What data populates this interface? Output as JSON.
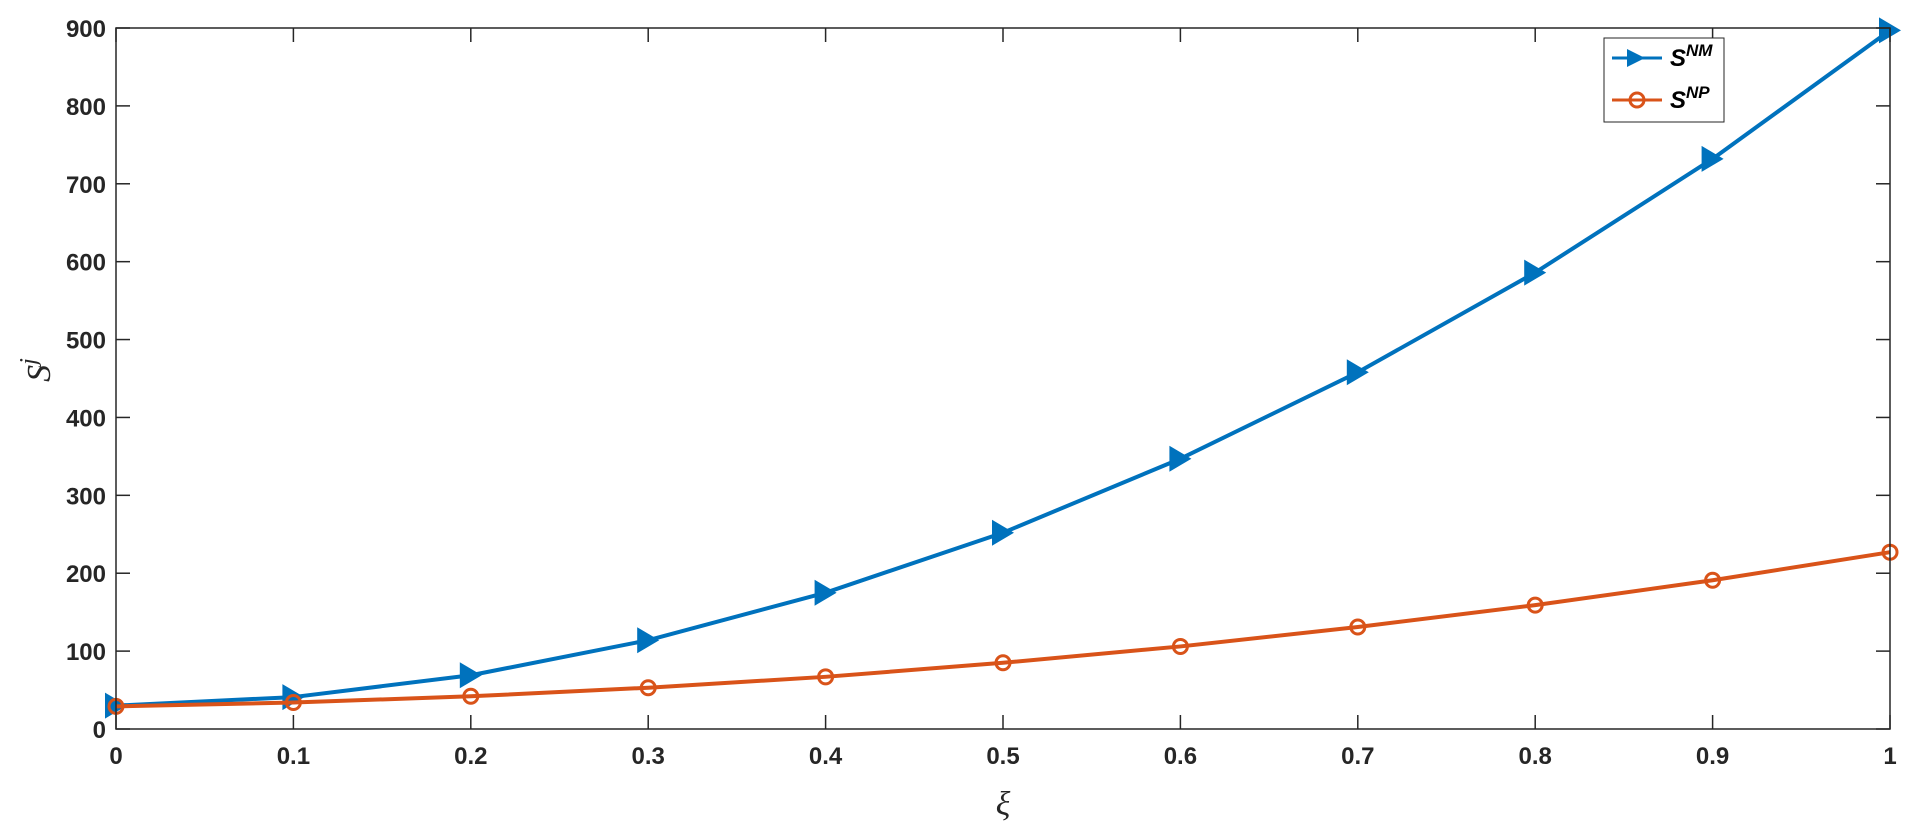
{
  "chart_data": {
    "type": "line",
    "title": "",
    "xlabel": "ξ",
    "ylabel": {
      "base": "S",
      "sup": "j"
    },
    "x": [
      0,
      0.1,
      0.2,
      0.3,
      0.4,
      0.5,
      0.6,
      0.7,
      0.8,
      0.9,
      1
    ],
    "xlim": [
      0,
      1
    ],
    "ylim": [
      0,
      900
    ],
    "xticks": [
      "0",
      "0.1",
      "0.2",
      "0.3",
      "0.4",
      "0.5",
      "0.6",
      "0.7",
      "0.8",
      "0.9",
      "1"
    ],
    "yticks": [
      "0",
      "100",
      "200",
      "300",
      "400",
      "500",
      "600",
      "700",
      "800",
      "900"
    ],
    "grid": false,
    "legend_position": "top-right",
    "series": [
      {
        "name": "S^NM",
        "label_base": "S",
        "label_sup": "NM",
        "color": "#0072BD",
        "marker": "triangle-right",
        "values": [
          30,
          41,
          69,
          114,
          175,
          252,
          347,
          458,
          586,
          732,
          897
        ]
      },
      {
        "name": "S^NP",
        "label_base": "S",
        "label_sup": "NP",
        "color": "#D95319",
        "marker": "circle",
        "values": [
          29,
          34,
          42,
          53,
          67,
          85,
          106,
          131,
          159,
          191,
          227
        ]
      }
    ]
  }
}
